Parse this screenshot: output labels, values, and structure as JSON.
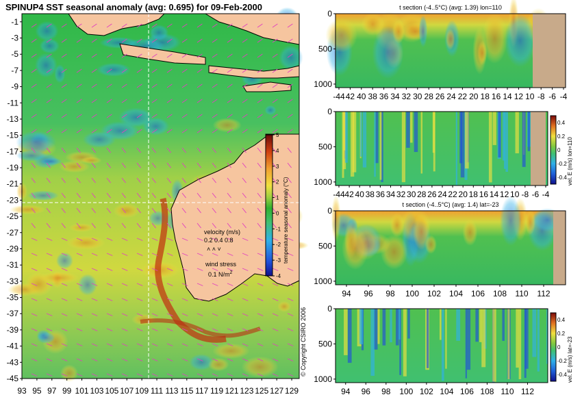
{
  "main_title": "SPINUP4 SST seasonal anomaly (avg: 0.695) for 09-Feb-2000",
  "colors": {
    "land": "#f6c59f",
    "land_dark": "#c8aa8a",
    "vector": "#e040c0",
    "crosshair": "#ffffff"
  },
  "main_map": {
    "lon_ticks": [
      "93",
      "95",
      "97",
      "99",
      "101",
      "103",
      "105",
      "107",
      "109",
      "111",
      "113",
      "115",
      "117",
      "119",
      "121",
      "123",
      "125",
      "127",
      "129"
    ],
    "lat_ticks": [
      "-1",
      "-3",
      "-5",
      "-7",
      "-9",
      "-11",
      "-13",
      "-15",
      "-17",
      "-19",
      "-21",
      "-23",
      "-25",
      "-27",
      "-29",
      "-31",
      "-33",
      "-35",
      "-37",
      "-39",
      "-41",
      "-43",
      "-45"
    ],
    "lon_range": [
      93,
      130
    ],
    "lat_range": [
      -45,
      0
    ],
    "crosshair": {
      "lon": 110,
      "lat": -23
    },
    "colorbar": {
      "label": "temperature seasonal anomaly (°C)",
      "ticks": [
        "5",
        "4",
        "3",
        "2",
        "1",
        "0",
        "-1",
        "-2",
        "-3",
        "-4"
      ],
      "range": [
        -4,
        5
      ]
    },
    "legend": {
      "velocity_label": "velocity (m/s)",
      "velocity_values": "0.2 0.4 0.8",
      "velocity_arrows": "˄   ˄   ˅",
      "wind_label": "wind stress",
      "wind_value": "0.1 N/m",
      "wind_exp": "2"
    }
  },
  "copyright": "© Copyright CSIRO 2006",
  "panels": [
    {
      "id": "t-lon",
      "title": "t section (-4..5°C) (avg: 1.39) lon=110",
      "x_ticks": [
        "-44",
        "42",
        "40",
        "38",
        "36",
        "34",
        "32",
        "30",
        "28",
        "26",
        "24",
        "22",
        "20",
        "18",
        "16",
        "14",
        "12",
        "10",
        "-8",
        "-6",
        "-4"
      ],
      "y_ticks": [
        "0",
        "500",
        "1000"
      ],
      "colorbar": null
    },
    {
      "id": "u-lon",
      "title": "",
      "x_ticks": [
        "-44",
        "42",
        "40",
        "38",
        "36",
        "34",
        "32",
        "30",
        "28",
        "26",
        "24",
        "22",
        "20",
        "18",
        "16",
        "14",
        "12",
        "10",
        "-8",
        "-6",
        "-4"
      ],
      "y_ticks": [
        "0",
        "500",
        "1000"
      ],
      "colorbar": {
        "label": "vel. E (m/s) lon=110",
        "ticks": [
          "0.4",
          "0.2",
          "0",
          "-0.2",
          "-0.4"
        ]
      }
    },
    {
      "id": "t-lat",
      "title": "t section (-4..5°C) (avg: 1.4) lat=-23",
      "x_ticks": [
        "94",
        "96",
        "98",
        "100",
        "102",
        "104",
        "106",
        "108",
        "110",
        "112"
      ],
      "y_ticks": [
        "0",
        "500",
        "1000"
      ],
      "colorbar": null
    },
    {
      "id": "u-lat",
      "title": "",
      "x_ticks": [
        "94",
        "96",
        "98",
        "100",
        "102",
        "104",
        "106",
        "108",
        "110",
        "112"
      ],
      "y_ticks": [
        "0",
        "500",
        "1000"
      ],
      "colorbar": {
        "label": "vel. E (m/s) lat=-23",
        "ticks": [
          "0.4",
          "0.2",
          "0",
          "-0.2",
          "-0.4"
        ]
      }
    }
  ],
  "chart_data": [
    {
      "type": "heatmap",
      "title": "SPINUP4 SST seasonal anomaly (avg: 0.695) for 09-Feb-2000",
      "xlabel": "",
      "ylabel": "",
      "xlim": [
        93,
        130
      ],
      "ylim": [
        -45,
        0
      ],
      "colorbar_range": [
        -4,
        5
      ],
      "colorbar_label": "temperature seasonal anomaly (°C)",
      "average": 0.695
    },
    {
      "type": "heatmap",
      "title": "t section (-4..5°C) (avg: 1.39) lon=110",
      "ylim": [
        1050,
        0
      ],
      "colorbar_range": [
        -4,
        5
      ],
      "average": 1.39
    },
    {
      "type": "heatmap",
      "title": "",
      "ylim": [
        1050,
        0
      ],
      "colorbar_range": [
        -0.4,
        0.4
      ],
      "colorbar_label": "vel. E (m/s) lon=110"
    },
    {
      "type": "heatmap",
      "title": "t section (-4..5°C) (avg: 1.4) lat=-23",
      "xlim": [
        93,
        114
      ],
      "ylim": [
        1050,
        0
      ],
      "colorbar_range": [
        -4,
        5
      ],
      "average": 1.4
    },
    {
      "type": "heatmap",
      "title": "",
      "xlim": [
        93,
        114
      ],
      "ylim": [
        1050,
        0
      ],
      "colorbar_range": [
        -0.4,
        0.4
      ],
      "colorbar_label": "vel. E (m/s) lat=-23"
    }
  ]
}
